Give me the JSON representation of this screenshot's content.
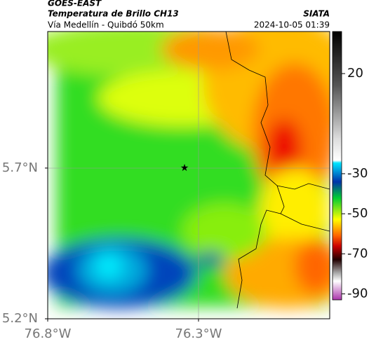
{
  "map": {
    "title_line1": "GOES-EAST",
    "title_line2": "Temperatura de Brillo CH13",
    "subtitle": "Vía Medellín - Quibdó 50km",
    "source": "SIATA",
    "timestamp": "2024-10-05 01:39",
    "lon_lim": [
      -76.8,
      -75.865
    ],
    "lat_lim": [
      5.2,
      6.153
    ],
    "lon_ticks": [
      {
        "value": -76.8,
        "label": "76.8°W"
      },
      {
        "value": -76.3,
        "label": "76.3°W"
      }
    ],
    "lat_ticks": [
      {
        "value": 5.2,
        "label": "5.2°N"
      },
      {
        "value": 5.7,
        "label": "5.7°N"
      }
    ],
    "colorbar": {
      "lim": [
        -93,
        41
      ],
      "ticks": [
        20,
        -30,
        -50,
        -70,
        -90
      ]
    }
  }
}
